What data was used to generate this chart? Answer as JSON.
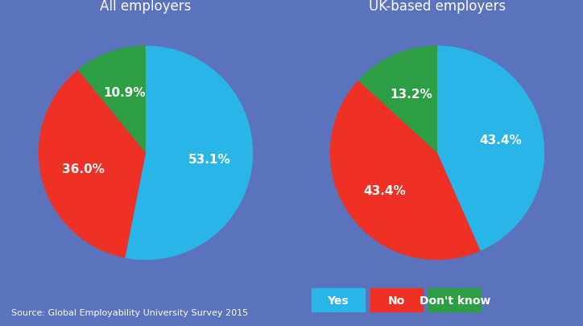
{
  "background_color": "#5b73bd",
  "pie1": {
    "title": "All employers",
    "values": [
      53.1,
      36.0,
      10.9
    ],
    "labels": [
      "53.1%",
      "36.0%",
      "10.9%"
    ],
    "colors": [
      "#29b5e8",
      "#ee3124",
      "#2e9e45"
    ],
    "startangle": 90
  },
  "pie2": {
    "title": "UK-based employers",
    "values": [
      43.4,
      43.4,
      13.2
    ],
    "labels": [
      "43.4%",
      "43.4%",
      "13.2%"
    ],
    "colors": [
      "#29b5e8",
      "#ee3124",
      "#2e9e45"
    ],
    "startangle": 90
  },
  "legend": {
    "labels": [
      "Yes",
      "No",
      "Don't know"
    ],
    "colors": [
      "#29b5e8",
      "#ee3124",
      "#2e9e45"
    ]
  },
  "source_text": "Source: Global Employability University Survey 2015",
  "title_fontsize": 12,
  "label_fontsize": 11,
  "source_fontsize": 8,
  "legend_fontsize": 10,
  "text_color": "white"
}
